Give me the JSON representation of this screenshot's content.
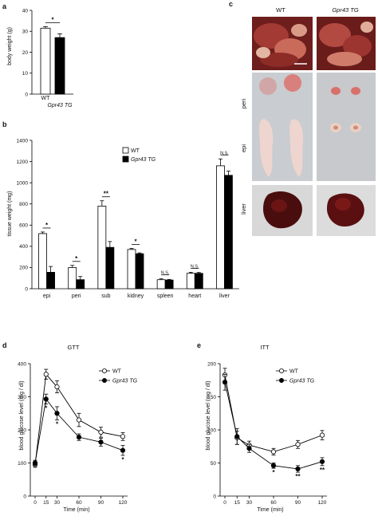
{
  "panels": {
    "a": {
      "letter": "a",
      "ylabel": "body weight (g)",
      "yticks": [
        0,
        10,
        20,
        30,
        40
      ],
      "categories": [
        "WT",
        "Gpr43 TG"
      ],
      "values": [
        31.5,
        27.0
      ],
      "errors": [
        0.7,
        1.8
      ],
      "significance": "*"
    },
    "b": {
      "letter": "b",
      "ylabel": "tissue weight (mg)",
      "yticks": [
        0,
        200,
        400,
        600,
        800,
        1000,
        1200,
        1400
      ],
      "legend": [
        "WT",
        "Gpr43 TG"
      ],
      "categories": [
        "epi",
        "peri",
        "sub",
        "kidney",
        "spleen",
        "heart",
        "liver"
      ],
      "wt": [
        520,
        200,
        780,
        370,
        85,
        145,
        1160
      ],
      "wt_err": [
        15,
        20,
        50,
        10,
        8,
        10,
        65
      ],
      "tg": [
        155,
        85,
        390,
        330,
        82,
        145,
        1070
      ],
      "tg_err": [
        55,
        30,
        55,
        8,
        6,
        8,
        40
      ],
      "significance": [
        "*",
        "*",
        "**",
        "*",
        "N.S.",
        "N.S.",
        "N.S."
      ]
    },
    "c": {
      "letter": "c",
      "col_labels": [
        "WT",
        "Gpr43 TG"
      ],
      "row_labels": [
        "peri",
        "epi",
        "liver"
      ]
    },
    "d": {
      "letter": "d",
      "title": "GTT",
      "ylabel": "blood glucose level (mg / dl)",
      "xlabel": "Time (min)",
      "yticks": [
        0,
        100,
        200,
        300,
        400
      ],
      "xticks": [
        0,
        15,
        30,
        60,
        90,
        120
      ],
      "legend": [
        "WT",
        "Gpr43 TG"
      ],
      "x": [
        0,
        15,
        30,
        60,
        90,
        120
      ],
      "wt": [
        95,
        368,
        330,
        230,
        193,
        180
      ],
      "wt_err": [
        8,
        15,
        18,
        20,
        15,
        12
      ],
      "tg": [
        100,
        293,
        250,
        178,
        163,
        138
      ],
      "tg_err": [
        8,
        15,
        20,
        10,
        12,
        15
      ],
      "significance": [
        "",
        "*",
        "*",
        "",
        "",
        "*"
      ]
    },
    "e": {
      "letter": "e",
      "title": "ITT",
      "ylabel": "blood glucose level (mg / dl)",
      "xlabel": "Time (min)",
      "yticks": [
        0,
        50,
        100,
        150,
        200
      ],
      "xticks": [
        0,
        15,
        30,
        60,
        90,
        120
      ],
      "legend": [
        "WT",
        "Gpr43 TG"
      ],
      "x": [
        0,
        15,
        30,
        60,
        90,
        120
      ],
      "wt": [
        183,
        88,
        77,
        67,
        78,
        92
      ],
      "wt_err": [
        10,
        10,
        6,
        5,
        6,
        7
      ],
      "tg": [
        172,
        90,
        72,
        46,
        41,
        52
      ],
      "tg_err": [
        12,
        12,
        6,
        4,
        5,
        6
      ],
      "significance": [
        "",
        "",
        "",
        "*",
        "**",
        "**"
      ]
    }
  },
  "chart_data": [
    {
      "type": "bar",
      "categories": [
        "WT",
        "Gpr43 TG"
      ],
      "values": [
        31.5,
        27.0
      ],
      "ylabel": "body weight (g)",
      "ylim": [
        0,
        40
      ]
    },
    {
      "type": "bar",
      "categories": [
        "epi",
        "peri",
        "sub",
        "kidney",
        "spleen",
        "heart",
        "liver"
      ],
      "series": [
        {
          "name": "WT",
          "values": [
            520,
            200,
            780,
            370,
            85,
            145,
            1160
          ]
        },
        {
          "name": "Gpr43 TG",
          "values": [
            155,
            85,
            390,
            330,
            82,
            145,
            1070
          ]
        }
      ],
      "ylabel": "tissue weight (mg)",
      "ylim": [
        0,
        1400
      ]
    },
    {
      "type": "line",
      "title": "GTT",
      "x": [
        0,
        15,
        30,
        60,
        90,
        120
      ],
      "series": [
        {
          "name": "WT",
          "values": [
            95,
            368,
            330,
            230,
            193,
            180
          ]
        },
        {
          "name": "Gpr43 TG",
          "values": [
            100,
            293,
            250,
            178,
            163,
            138
          ]
        }
      ],
      "xlabel": "Time (min)",
      "ylabel": "blood glucose level (mg / dl)",
      "ylim": [
        0,
        400
      ]
    },
    {
      "type": "line",
      "title": "ITT",
      "x": [
        0,
        15,
        30,
        60,
        90,
        120
      ],
      "series": [
        {
          "name": "WT",
          "values": [
            183,
            88,
            77,
            67,
            78,
            92
          ]
        },
        {
          "name": "Gpr43 TG",
          "values": [
            172,
            90,
            72,
            46,
            41,
            52
          ]
        }
      ],
      "xlabel": "Time (min)",
      "ylabel": "blood glucose level (mg / dl)",
      "ylim": [
        0,
        200
      ]
    }
  ],
  "colors": {
    "wt_fill": "#ffffff",
    "tg_fill": "#000000",
    "stroke": "#000000"
  }
}
